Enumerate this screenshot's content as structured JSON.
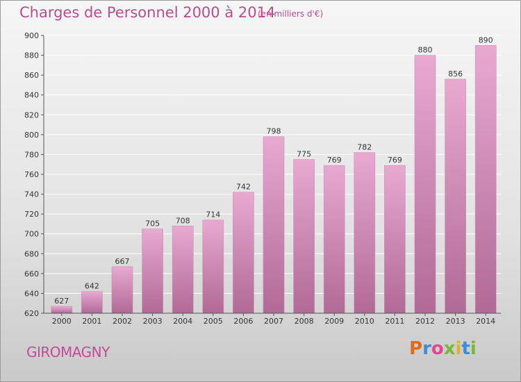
{
  "header": {
    "title": "Charges de Personnel 2000 à 2014",
    "subtitle": "(en milliers d'€)"
  },
  "footer": {
    "city": "GIROMAGNY",
    "logo": "Proxiti"
  },
  "colors": {
    "title": "#b84d8e",
    "bar_top": "#e8a9d1",
    "bar_bottom": "#b06a95",
    "grid": "#ffffff"
  },
  "chart_data": {
    "type": "bar",
    "title": "Charges de Personnel 2000 à 2014",
    "subtitle": "(en milliers d'€)",
    "xlabel": "",
    "ylabel": "",
    "categories": [
      "2000",
      "2001",
      "2002",
      "2003",
      "2004",
      "2005",
      "2006",
      "2007",
      "2008",
      "2009",
      "2010",
      "2011",
      "2012",
      "2013",
      "2014"
    ],
    "values": [
      627,
      642,
      667,
      705,
      708,
      714,
      742,
      798,
      775,
      769,
      782,
      769,
      880,
      856,
      890
    ],
    "ylim": [
      620,
      900
    ],
    "yticks": [
      620,
      640,
      660,
      680,
      700,
      720,
      740,
      760,
      780,
      800,
      820,
      840,
      860,
      880,
      900
    ],
    "grid": true,
    "data_labels": true
  }
}
